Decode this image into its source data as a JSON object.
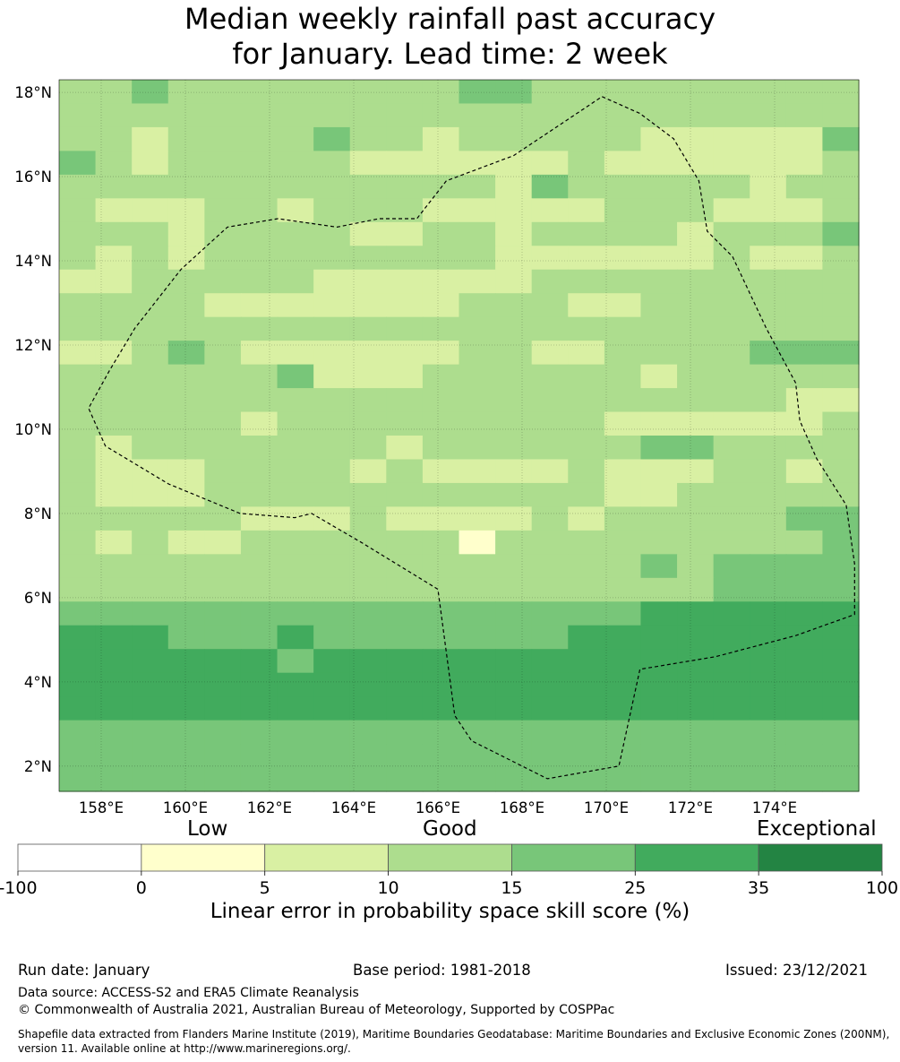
{
  "title": {
    "line1": "Median weekly rainfall past accuracy",
    "line2": "for January. Lead time: 2 week"
  },
  "map": {
    "lon_range": [
      157,
      176
    ],
    "lat_range": [
      1.4,
      18.3
    ],
    "lon_ticks": [
      "158°E",
      "160°E",
      "162°E",
      "164°E",
      "166°E",
      "168°E",
      "170°E",
      "172°E",
      "174°E"
    ],
    "lat_ticks": [
      "18°N",
      "16°N",
      "14°N",
      "12°N",
      "10°N",
      "8°N",
      "6°N",
      "4°N",
      "2°N"
    ],
    "grid": true,
    "cell_size_deg": 0.833,
    "skill_grid": [
      "3343333333344333333333",
      "3333333333333333333333",
      "3323333433233333222224",
      "4323333322222232222223",
      "3333333333332433333233",
      "3222332333222223332223",
      "3332333322332333323334",
      "3232333333332222223223",
      "2233333222222333333333",
      "3333222222233322333333",
      "3333333333333333333333",
      "2234322222233223333444",
      "3333334222333333233333",
      "3333333333333333333322",
      "3333323333333332222223",
      "3233333332333333443333",
      "3222333323222232223323",
      "3222333333333332233333",
      "3333322232222323333344",
      "3232233333313333333334",
      "3333333333333333434444",
      "3333333333333333334444",
      "4444444444444444555555",
      "5554445444444455555555",
      "5555554555555555555555",
      "5555555555555555555555",
      "5555555555555555555555",
      "4444444444444444444444",
      "4444444444444444444444",
      "4444444444444444444444"
    ],
    "skill_colors": [
      "#ffffff",
      "#ffffcc",
      "#d9f0a3",
      "#addd8e",
      "#78c679",
      "#41ab5d",
      "#238443"
    ],
    "border_lon_lat": [
      [
        169.9,
        17.9
      ],
      [
        170.8,
        17.5
      ],
      [
        171.6,
        16.9
      ],
      [
        172.2,
        15.9
      ],
      [
        172.4,
        14.7
      ],
      [
        173.0,
        14.1
      ],
      [
        173.8,
        12.4
      ],
      [
        174.5,
        11.1
      ],
      [
        174.6,
        10.2
      ],
      [
        175.0,
        9.3
      ],
      [
        175.7,
        8.2
      ],
      [
        175.9,
        6.8
      ],
      [
        175.9,
        5.6
      ],
      [
        174.5,
        5.1
      ],
      [
        172.6,
        4.6
      ],
      [
        170.8,
        4.3
      ],
      [
        170.3,
        2.0
      ],
      [
        168.6,
        1.7
      ],
      [
        166.8,
        2.6
      ],
      [
        166.4,
        3.2
      ],
      [
        166.0,
        6.2
      ],
      [
        164.2,
        7.3
      ],
      [
        163.0,
        8.0
      ],
      [
        162.6,
        7.9
      ],
      [
        161.3,
        8.0
      ],
      [
        159.6,
        8.7
      ],
      [
        158.1,
        9.6
      ],
      [
        157.7,
        10.5
      ],
      [
        158.2,
        11.4
      ],
      [
        158.8,
        12.4
      ],
      [
        159.9,
        13.8
      ],
      [
        161.0,
        14.8
      ],
      [
        162.2,
        15.0
      ],
      [
        163.6,
        14.8
      ],
      [
        164.6,
        15.0
      ],
      [
        165.5,
        15.0
      ],
      [
        166.2,
        15.9
      ],
      [
        167.8,
        16.5
      ],
      [
        169.9,
        17.9
      ]
    ]
  },
  "colorbar": {
    "category_labels": [
      "Low",
      "Good",
      "Exceptional"
    ],
    "boundaries": [
      "-100",
      "0",
      "5",
      "10",
      "15",
      "25",
      "35",
      "100"
    ],
    "colors": [
      "#ffffff",
      "#ffffcc",
      "#d9f0a3",
      "#addd8e",
      "#78c679",
      "#41ab5d",
      "#238443"
    ],
    "xlabel": "Linear error in probability space skill score (%)"
  },
  "footer": {
    "run_date": "Run date: January",
    "base_period": "Base period: 1981-2018",
    "issued": "Issued: 23/12/2021",
    "data_source": "Data source: ACCESS-S2 and ERA5 Climate Reanalysis",
    "copyright": "© Commonwealth of Australia 2021, Australian Bureau of Meteorology, Supported by COSPPac",
    "shapefile": "Shapefile data extracted from Flanders Marine Institute (2019), Maritime Boundaries Geodatabase: Maritime Boundaries and Exclusive Economic Zones (200NM), version 11. Available online at http://www.marineregions.org/."
  }
}
